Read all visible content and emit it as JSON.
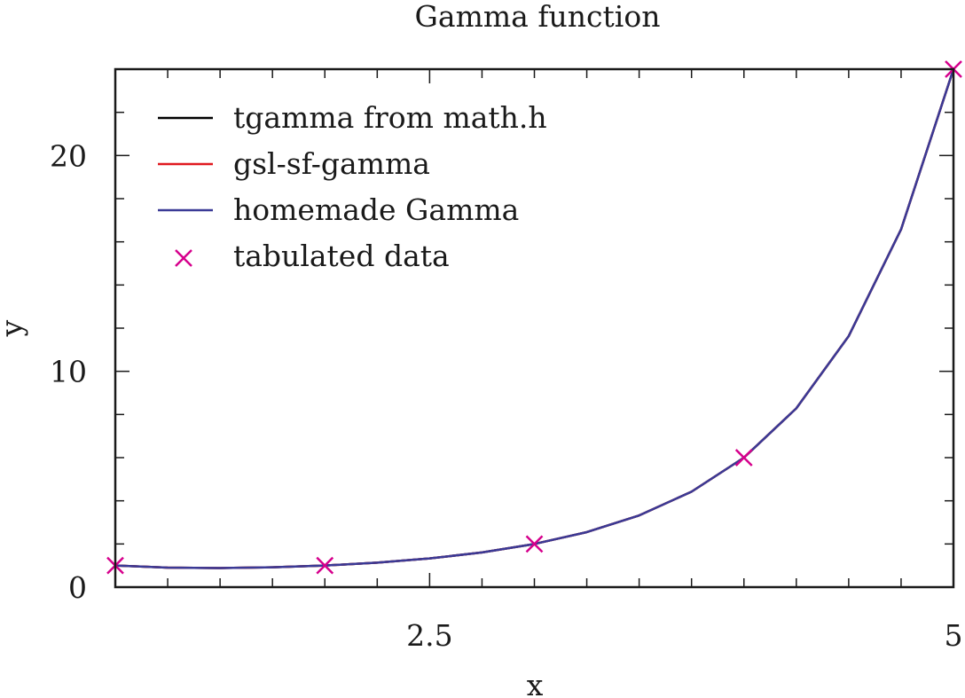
{
  "chart_data": {
    "type": "line",
    "title": "Gamma function",
    "xlabel": "x",
    "ylabel": "y",
    "xlim": [
      1,
      5
    ],
    "ylim": [
      0,
      24
    ],
    "x_ticks": [
      2.5,
      5
    ],
    "x_tick_labels": [
      "2.5",
      "5"
    ],
    "y_ticks": [
      0,
      10,
      20
    ],
    "y_tick_labels": [
      "0",
      "10",
      "20"
    ],
    "grid": false,
    "legend_position": "top-left",
    "series": [
      {
        "name": "tgamma from math.h",
        "kind": "line",
        "color": "#000000",
        "x": [
          1.0,
          1.25,
          1.5,
          1.75,
          2.0,
          2.25,
          2.5,
          2.75,
          3.0,
          3.25,
          3.5,
          3.75,
          4.0,
          4.25,
          4.5,
          4.75,
          5.0
        ],
        "y": [
          1.0,
          0.906,
          0.886,
          0.919,
          1.0,
          1.133,
          1.329,
          1.608,
          2.0,
          2.549,
          3.323,
          4.423,
          6.0,
          8.285,
          11.632,
          16.578,
          24.0
        ]
      },
      {
        "name": "gsl-sf-gamma",
        "kind": "line",
        "color": "#e0191f",
        "x": [
          1.0,
          1.25,
          1.5,
          1.75,
          2.0,
          2.25,
          2.5,
          2.75,
          3.0,
          3.25,
          3.5,
          3.75,
          4.0,
          4.25,
          4.5,
          4.75,
          5.0
        ],
        "y": [
          1.0,
          0.906,
          0.886,
          0.919,
          1.0,
          1.133,
          1.329,
          1.608,
          2.0,
          2.549,
          3.323,
          4.423,
          6.0,
          8.285,
          11.632,
          16.578,
          24.0
        ]
      },
      {
        "name": "homemade Gamma",
        "kind": "line",
        "color": "#3a3a96",
        "x": [
          1.0,
          1.25,
          1.5,
          1.75,
          2.0,
          2.25,
          2.5,
          2.75,
          3.0,
          3.25,
          3.5,
          3.75,
          4.0,
          4.25,
          4.5,
          4.75,
          5.0
        ],
        "y": [
          1.0,
          0.906,
          0.886,
          0.919,
          1.0,
          1.133,
          1.329,
          1.608,
          2.0,
          2.549,
          3.323,
          4.423,
          6.0,
          8.285,
          11.632,
          16.578,
          24.0
        ]
      },
      {
        "name": "tabulated data",
        "kind": "scatter",
        "marker": "x",
        "color": "#d6008c",
        "x": [
          1,
          2,
          3,
          4,
          5
        ],
        "y": [
          1,
          1,
          2,
          6,
          24
        ]
      }
    ]
  }
}
